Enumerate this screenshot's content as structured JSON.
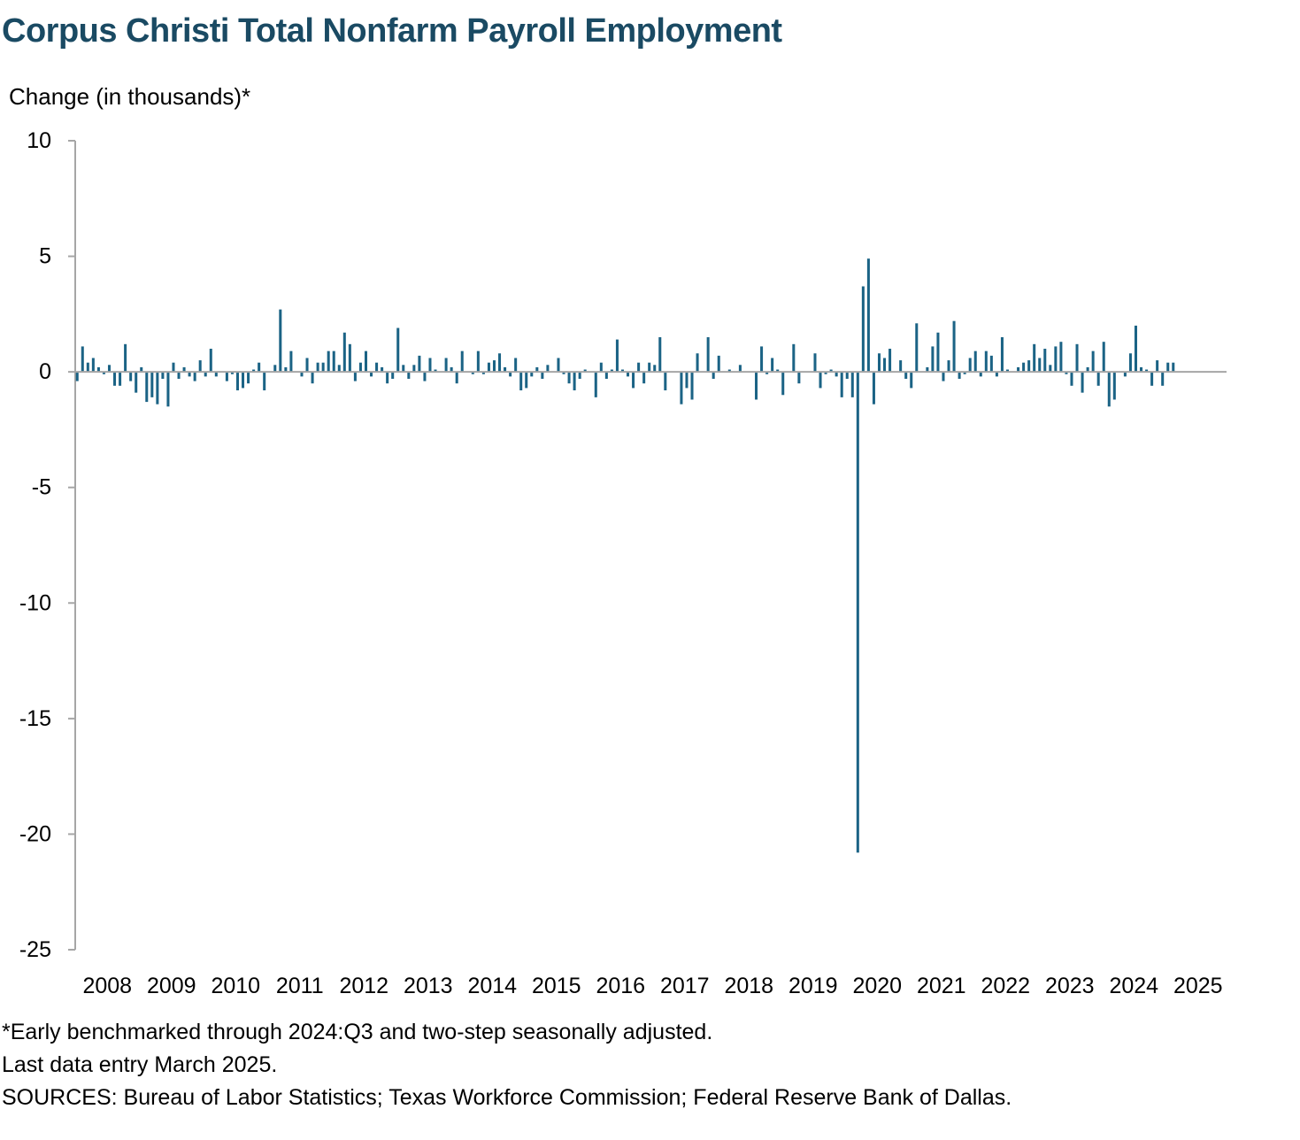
{
  "title": "Corpus Christi Total Nonfarm Payroll Employment",
  "notes": [
    "*Early benchmarked through 2024:Q3 and two-step seasonally adjusted.",
    "Last data entry March 2025.",
    "SOURCES: Bureau of Labor Statistics; Texas Workforce Commission; Federal Reserve Bank of Dallas."
  ],
  "colors": {
    "bar": "#1b6385",
    "axis": "#a6a6a6",
    "title": "#1a4a63"
  },
  "chart_data": {
    "type": "bar",
    "ylabel": "Change (in thousands)*",
    "ylim": [
      -25,
      10
    ],
    "yticks": [
      10,
      5,
      0,
      -5,
      -10,
      -15,
      -20,
      -25
    ],
    "xticks": [
      "2008",
      "2009",
      "2010",
      "2011",
      "2012",
      "2013",
      "2014",
      "2015",
      "2016",
      "2017",
      "2018",
      "2019",
      "2020",
      "2021",
      "2022",
      "2023",
      "2024",
      "2025"
    ],
    "x_start": "2008-01",
    "frequency": "monthly",
    "values": [
      -0.4,
      1.1,
      0.4,
      0.6,
      0.2,
      -0.1,
      0.3,
      -0.6,
      -0.6,
      1.2,
      -0.4,
      -0.9,
      0.2,
      -1.3,
      -1.1,
      -1.4,
      -0.3,
      -1.5,
      0.4,
      -0.3,
      0.2,
      -0.2,
      -0.4,
      0.5,
      -0.2,
      1.0,
      -0.2,
      0.0,
      -0.4,
      -0.1,
      -0.8,
      -0.7,
      -0.5,
      0.1,
      0.4,
      -0.8,
      0.0,
      0.3,
      2.7,
      0.2,
      0.9,
      0.0,
      -0.2,
      0.6,
      -0.5,
      0.4,
      0.4,
      0.9,
      0.9,
      0.3,
      1.7,
      1.2,
      -0.4,
      0.4,
      0.9,
      -0.2,
      0.4,
      0.2,
      -0.5,
      -0.3,
      1.9,
      0.3,
      -0.3,
      0.3,
      0.7,
      -0.4,
      0.6,
      0.1,
      0.0,
      0.6,
      0.2,
      -0.5,
      0.9,
      0.0,
      -0.1,
      0.9,
      -0.1,
      0.4,
      0.5,
      0.8,
      0.2,
      -0.2,
      0.6,
      -0.8,
      -0.7,
      -0.2,
      0.2,
      -0.3,
      0.3,
      0.0,
      0.6,
      -0.1,
      -0.5,
      -0.8,
      -0.3,
      0.1,
      0.0,
      -1.1,
      0.4,
      -0.3,
      0.1,
      1.4,
      0.1,
      -0.2,
      -0.7,
      0.4,
      -0.5,
      0.4,
      0.3,
      1.5,
      -0.8,
      0.0,
      0.0,
      -1.4,
      -0.7,
      -1.2,
      0.8,
      0.0,
      1.5,
      -0.3,
      0.7,
      0.0,
      0.1,
      0.0,
      0.3,
      0.0,
      0.0,
      -1.2,
      1.1,
      -0.1,
      0.6,
      0.1,
      -1.0,
      0.0,
      1.2,
      -0.5,
      0.0,
      0.0,
      0.8,
      -0.7,
      -0.1,
      0.1,
      -0.2,
      -1.1,
      -0.3,
      -1.1,
      -20.8,
      3.7,
      4.9,
      -1.4,
      0.8,
      0.6,
      1.0,
      0.0,
      0.5,
      -0.3,
      -0.7,
      2.1,
      0.0,
      0.2,
      1.1,
      1.7,
      -0.4,
      0.5,
      2.2,
      -0.3,
      -0.1,
      0.6,
      0.9,
      -0.2,
      0.9,
      0.7,
      -0.2,
      1.5,
      0.1,
      0.0,
      0.2,
      0.4,
      0.5,
      1.2,
      0.6,
      1.0,
      0.3,
      1.1,
      1.3,
      -0.1,
      -0.6,
      1.2,
      -0.9,
      0.2,
      0.9,
      -0.6,
      1.3,
      -1.5,
      -1.2,
      0.0,
      -0.2,
      0.8,
      2.0,
      0.2,
      0.1,
      -0.6,
      0.5,
      -0.6,
      0.4,
      0.4,
      0.0
    ]
  }
}
